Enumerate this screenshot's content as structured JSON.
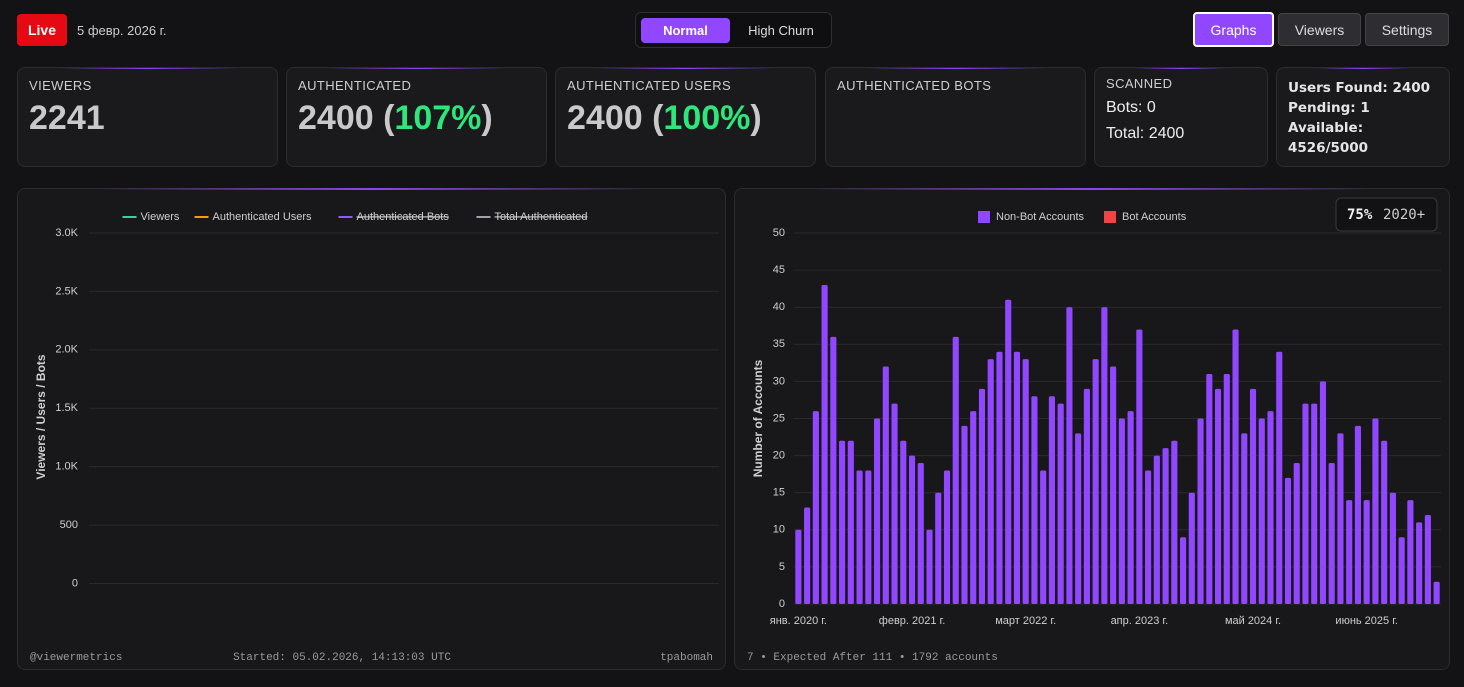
{
  "header": {
    "live": "Live",
    "date": "5 февр. 2026 г.",
    "modes": [
      "Normal",
      "High Churn"
    ],
    "nav": [
      "Graphs",
      "Viewers",
      "Settings"
    ]
  },
  "cards": [
    {
      "label": "VIEWERS",
      "value_parts": [
        "2241"
      ]
    },
    {
      "label": "AUTHENTICATED",
      "value_parts": [
        "2400 (",
        "107%",
        ")"
      ]
    },
    {
      "label": "AUTHENTICATED USERS",
      "value_parts": [
        "2400 (",
        "100%",
        ")"
      ]
    },
    {
      "label": "AUTHENTICATED BOTS"
    },
    {
      "label": "SCANNED",
      "lines": [
        "Bots: 0",
        "Total: 2400"
      ]
    },
    {
      "lines": [
        "Users Found: 2400",
        "Pending: 1",
        "Available:",
        "4526/5000"
      ]
    }
  ],
  "chart_data": [
    {
      "type": "line",
      "y_label": "Viewers / Users / Bots",
      "series": [
        {
          "name": "Viewers",
          "color": "#34d399",
          "values": []
        },
        {
          "name": "Authenticated Users",
          "color": "#f59e0b",
          "values": []
        },
        {
          "name": "Authenticated Bots",
          "color": "#8b5cf6",
          "values": [],
          "hidden": true
        },
        {
          "name": "Total Authenticated",
          "color": "#9ca3af",
          "values": [],
          "hidden": true
        }
      ],
      "ylim": [
        -150,
        3000
      ],
      "yticks": [
        0,
        500,
        {
          "value": 1000,
          "label": "1.0K"
        },
        {
          "value": 1500,
          "label": "1.5K"
        },
        {
          "value": 2000,
          "label": "2.0K"
        },
        {
          "value": 2500,
          "label": "2.5K"
        },
        {
          "value": 3000,
          "label": "3.0K"
        }
      ],
      "grid": true,
      "footer": [
        "@viewermetrics",
        "Started: 05.02.2026, 14:13:03 UTC",
        "tpabomah"
      ]
    },
    {
      "type": "bar",
      "y_label": "Number of Accounts",
      "stacked": true,
      "categories": [
        "янв. 2020 г.",
        null,
        null,
        null,
        null,
        null,
        null,
        null,
        null,
        null,
        null,
        null,
        null,
        "февр. 2021 г.",
        null,
        null,
        null,
        null,
        null,
        null,
        null,
        null,
        null,
        null,
        null,
        null,
        "март 2022 г.",
        null,
        null,
        null,
        null,
        null,
        null,
        null,
        null,
        null,
        null,
        null,
        null,
        "апр. 2023 г.",
        null,
        null,
        null,
        null,
        null,
        null,
        null,
        null,
        null,
        null,
        null,
        null,
        "май 2024 г.",
        null,
        null,
        null,
        null,
        null,
        null,
        null,
        null,
        null,
        null,
        null,
        null,
        "июнь 2025 г.",
        null,
        null,
        null,
        null,
        null,
        null,
        null,
        null
      ],
      "series": [
        {
          "name": "Non-Bot Accounts",
          "color": "#9147ff",
          "values": [
            10,
            13,
            26,
            43,
            36,
            22,
            22,
            18,
            18,
            25,
            32,
            27,
            22,
            20,
            19,
            10,
            15,
            18,
            36,
            24,
            26,
            29,
            33,
            34,
            41,
            34,
            33,
            28,
            18,
            28,
            27,
            40,
            23,
            29,
            33,
            40,
            32,
            25,
            26,
            37,
            18,
            20,
            21,
            22,
            9,
            15,
            25,
            31,
            29,
            31,
            37,
            23,
            29,
            25,
            26,
            34,
            17,
            19,
            27,
            27,
            30,
            19,
            23,
            14,
            24,
            14,
            25,
            22,
            15,
            9,
            14,
            11,
            12,
            3
          ]
        },
        {
          "name": "Bot Accounts",
          "color": "#ef4444",
          "values": [
            0,
            0,
            0,
            0,
            0,
            0,
            0,
            0,
            0,
            0,
            0,
            0,
            0,
            0,
            0,
            0,
            0,
            0,
            0,
            0,
            0,
            0,
            0,
            0,
            0,
            0,
            0,
            0,
            0,
            0,
            0,
            0,
            0,
            0,
            0,
            0,
            0,
            0,
            0,
            0,
            0,
            0,
            0,
            0,
            0,
            0,
            0,
            0,
            0,
            0,
            0,
            0,
            0,
            0,
            0,
            0,
            0,
            0,
            0,
            0,
            0,
            0,
            0,
            0,
            0,
            0,
            0,
            0,
            0,
            0,
            0,
            0,
            0,
            0
          ]
        }
      ],
      "ylim": [
        0,
        50
      ],
      "yticks": [
        0,
        5,
        10,
        15,
        20,
        25,
        30,
        35,
        40,
        45,
        50
      ],
      "grid": true,
      "badge": [
        "75%",
        "2020+"
      ],
      "footer": [
        "7 • Expected After 111 • 1792 accounts"
      ]
    }
  ]
}
